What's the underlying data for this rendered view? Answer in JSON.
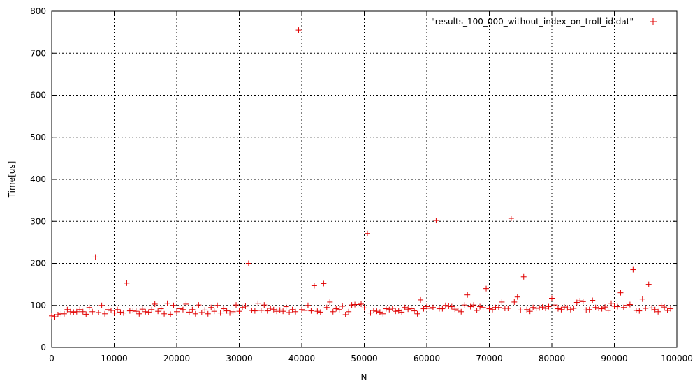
{
  "chart_data": {
    "type": "scatter",
    "title": "",
    "xlabel": "N",
    "ylabel": "Time[us]",
    "xlim": [
      0,
      100000
    ],
    "ylim": [
      0,
      800
    ],
    "xticks": [
      0,
      10000,
      20000,
      30000,
      40000,
      50000,
      60000,
      70000,
      80000,
      90000,
      100000
    ],
    "yticks": [
      0,
      100,
      200,
      300,
      400,
      500,
      600,
      700,
      800
    ],
    "grid": true,
    "legend_position": "top-right",
    "marker": "plus",
    "series": [
      {
        "name": "\"results_100_000_without_index_on_troll_id.dat\"",
        "color": "#e00000",
        "points": [
          [
            0,
            75
          ],
          [
            500,
            73
          ],
          [
            1000,
            78
          ],
          [
            1500,
            80
          ],
          [
            2000,
            80
          ],
          [
            2500,
            90
          ],
          [
            3000,
            85
          ],
          [
            3500,
            84
          ],
          [
            4000,
            85
          ],
          [
            4500,
            90
          ],
          [
            5000,
            85
          ],
          [
            5500,
            79
          ],
          [
            6000,
            95
          ],
          [
            6500,
            85
          ],
          [
            7000,
            215
          ],
          [
            7500,
            83
          ],
          [
            8000,
            100
          ],
          [
            8500,
            80
          ],
          [
            9000,
            90
          ],
          [
            9500,
            88
          ],
          [
            10000,
            82
          ],
          [
            10500,
            90
          ],
          [
            11000,
            84
          ],
          [
            11500,
            82
          ],
          [
            12000,
            153
          ],
          [
            12500,
            87
          ],
          [
            13000,
            88
          ],
          [
            13500,
            86
          ],
          [
            14000,
            80
          ],
          [
            14500,
            91
          ],
          [
            15000,
            85
          ],
          [
            15500,
            84
          ],
          [
            16000,
            90
          ],
          [
            16500,
            103
          ],
          [
            17000,
            86
          ],
          [
            17500,
            92
          ],
          [
            18000,
            80
          ],
          [
            18500,
            105
          ],
          [
            19000,
            79
          ],
          [
            19500,
            100
          ],
          [
            20000,
            85
          ],
          [
            20500,
            92
          ],
          [
            21000,
            90
          ],
          [
            21500,
            103
          ],
          [
            22000,
            84
          ],
          [
            22500,
            90
          ],
          [
            23000,
            80
          ],
          [
            23500,
            101
          ],
          [
            24000,
            83
          ],
          [
            24500,
            89
          ],
          [
            25000,
            80
          ],
          [
            25500,
            95
          ],
          [
            26000,
            86
          ],
          [
            26500,
            100
          ],
          [
            27000,
            82
          ],
          [
            27500,
            92
          ],
          [
            28000,
            87
          ],
          [
            28500,
            82
          ],
          [
            29000,
            85
          ],
          [
            29500,
            101
          ],
          [
            30000,
            86
          ],
          [
            30500,
            95
          ],
          [
            31000,
            98
          ],
          [
            31500,
            200
          ],
          [
            32000,
            88
          ],
          [
            32500,
            87
          ],
          [
            33000,
            105
          ],
          [
            33500,
            88
          ],
          [
            34000,
            101
          ],
          [
            34500,
            87
          ],
          [
            35000,
            93
          ],
          [
            35500,
            90
          ],
          [
            36000,
            86
          ],
          [
            36500,
            89
          ],
          [
            37000,
            86
          ],
          [
            37500,
            97
          ],
          [
            38000,
            83
          ],
          [
            38500,
            90
          ],
          [
            39000,
            85
          ],
          [
            39500,
            755
          ],
          [
            40000,
            90
          ],
          [
            40500,
            88
          ],
          [
            41000,
            100
          ],
          [
            41500,
            87
          ],
          [
            42000,
            147
          ],
          [
            42500,
            86
          ],
          [
            43000,
            84
          ],
          [
            43500,
            152
          ],
          [
            44000,
            95
          ],
          [
            44500,
            108
          ],
          [
            45000,
            85
          ],
          [
            45500,
            92
          ],
          [
            46000,
            90
          ],
          [
            46500,
            98
          ],
          [
            47000,
            78
          ],
          [
            47500,
            85
          ],
          [
            48000,
            101
          ],
          [
            48500,
            102
          ],
          [
            49000,
            102
          ],
          [
            49500,
            103
          ],
          [
            50000,
            94
          ],
          [
            50500,
            271
          ],
          [
            51000,
            82
          ],
          [
            51500,
            88
          ],
          [
            52000,
            86
          ],
          [
            52500,
            84
          ],
          [
            53000,
            80
          ],
          [
            53500,
            92
          ],
          [
            54000,
            90
          ],
          [
            54500,
            93
          ],
          [
            55000,
            86
          ],
          [
            55500,
            87
          ],
          [
            56000,
            84
          ],
          [
            56500,
            95
          ],
          [
            57000,
            91
          ],
          [
            57500,
            92
          ],
          [
            58000,
            87
          ],
          [
            58500,
            80
          ],
          [
            59000,
            113
          ],
          [
            59500,
            92
          ],
          [
            60000,
            97
          ],
          [
            60500,
            93
          ],
          [
            61000,
            95
          ],
          [
            61500,
            302
          ],
          [
            62000,
            92
          ],
          [
            62500,
            92
          ],
          [
            63000,
            100
          ],
          [
            63500,
            98
          ],
          [
            64000,
            97
          ],
          [
            64500,
            91
          ],
          [
            65000,
            88
          ],
          [
            65500,
            85
          ],
          [
            66000,
            101
          ],
          [
            66500,
            125
          ],
          [
            67000,
            97
          ],
          [
            67500,
            101
          ],
          [
            68000,
            88
          ],
          [
            68500,
            97
          ],
          [
            69000,
            95
          ],
          [
            69500,
            140
          ],
          [
            70000,
            92
          ],
          [
            70500,
            90
          ],
          [
            71000,
            95
          ],
          [
            71500,
            95
          ],
          [
            72000,
            108
          ],
          [
            72500,
            93
          ],
          [
            73000,
            93
          ],
          [
            73500,
            307
          ],
          [
            74000,
            108
          ],
          [
            74500,
            120
          ],
          [
            75000,
            89
          ],
          [
            75500,
            168
          ],
          [
            76000,
            90
          ],
          [
            76500,
            86
          ],
          [
            77000,
            95
          ],
          [
            77500,
            93
          ],
          [
            78000,
            94
          ],
          [
            78500,
            96
          ],
          [
            79000,
            93
          ],
          [
            79500,
            97
          ],
          [
            80000,
            117
          ],
          [
            80500,
            101
          ],
          [
            81000,
            92
          ],
          [
            81500,
            90
          ],
          [
            82000,
            96
          ],
          [
            82500,
            94
          ],
          [
            83000,
            90
          ],
          [
            83500,
            93
          ],
          [
            84000,
            107
          ],
          [
            84500,
            111
          ],
          [
            85000,
            109
          ],
          [
            85500,
            89
          ],
          [
            86000,
            90
          ],
          [
            86500,
            112
          ],
          [
            87000,
            95
          ],
          [
            87500,
            93
          ],
          [
            88000,
            92
          ],
          [
            88500,
            96
          ],
          [
            89000,
            88
          ],
          [
            89500,
            105
          ],
          [
            90000,
            98
          ],
          [
            90500,
            97
          ],
          [
            91000,
            130
          ],
          [
            91500,
            95
          ],
          [
            92000,
            100
          ],
          [
            92500,
            102
          ],
          [
            93000,
            185
          ],
          [
            93500,
            88
          ],
          [
            94000,
            87
          ],
          [
            94500,
            115
          ],
          [
            95000,
            93
          ],
          [
            95500,
            150
          ],
          [
            96000,
            94
          ],
          [
            96500,
            90
          ],
          [
            97000,
            85
          ],
          [
            97500,
            100
          ],
          [
            98000,
            96
          ],
          [
            98500,
            88
          ],
          [
            99000,
            92
          ]
        ]
      }
    ]
  }
}
